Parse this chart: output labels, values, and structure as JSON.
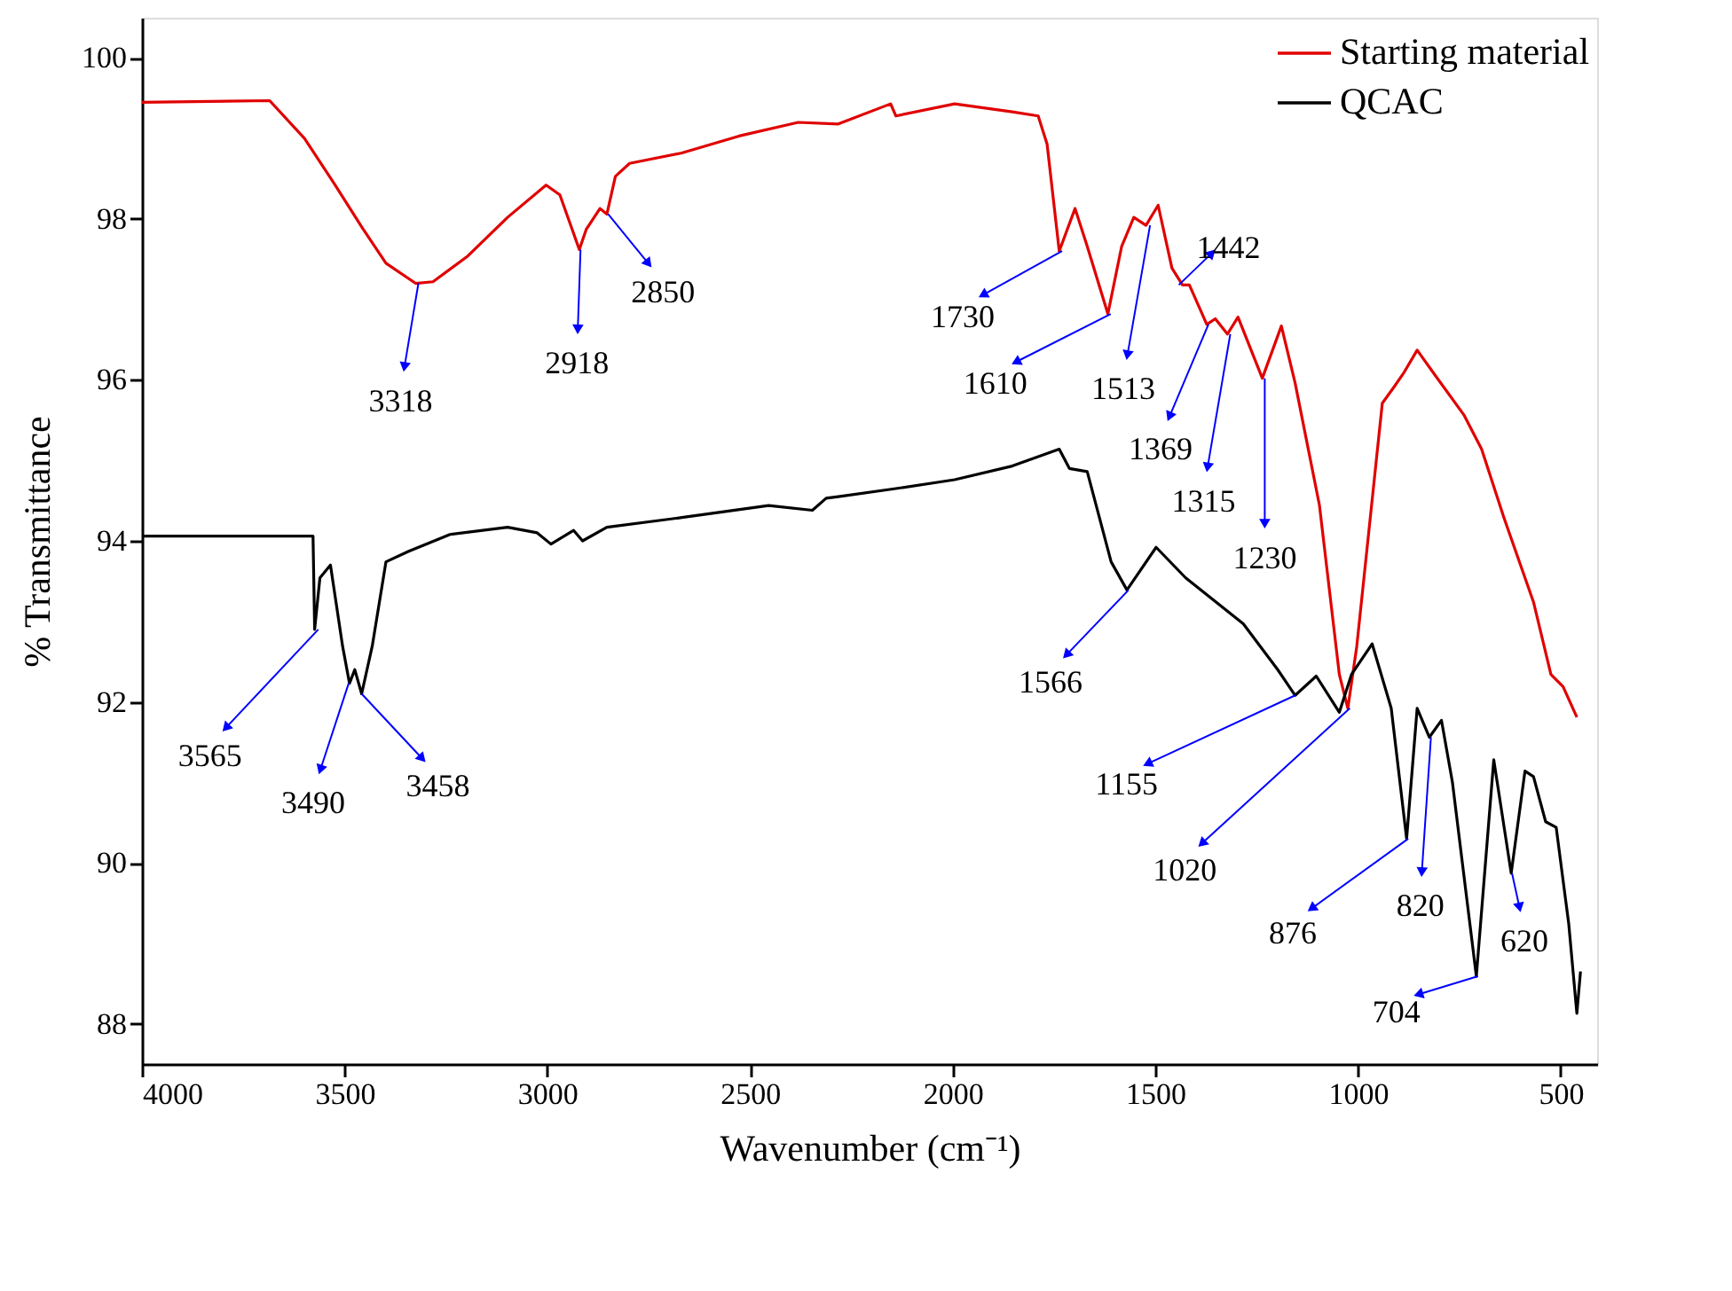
{
  "chart_data": {
    "type": "line",
    "xlabel": "Wavenumber (cm⁻¹)",
    "ylabel": "% Transmittance",
    "xlim": [
      4000,
      410
    ],
    "xticks": [
      4000,
      3500,
      3000,
      2500,
      2000,
      1500,
      1000,
      500
    ],
    "ylim": [
      87.5,
      100.5
    ],
    "yticks": [
      88,
      90,
      92,
      94,
      96,
      98,
      100
    ],
    "grid": false,
    "legend": "top right",
    "marker": "none",
    "line_style": "solid",
    "series": [
      {
        "name": "Starting material",
        "color": "#e00000",
        "x": [
          4000,
          3685,
          3599,
          3526,
          3454,
          3398,
          3325,
          3282,
          3196,
          3098,
          3003,
          2969,
          2921,
          2904,
          2870,
          2853,
          2832,
          2797,
          2668,
          2527,
          2381,
          2282,
          2153,
          2140,
          1995,
          1853,
          1789,
          1767,
          1737,
          1698,
          1668,
          1617,
          1583,
          1553,
          1523,
          1493,
          1459,
          1433,
          1416,
          1373,
          1352,
          1322,
          1296,
          1236,
          1189,
          1155,
          1095,
          1046,
          1025,
          1003,
          940,
          910,
          888,
          854,
          810,
          738,
          695,
          640,
          567,
          524,
          494,
          460
        ],
        "values": [
          99.45,
          99.47,
          99.0,
          98.44,
          97.87,
          97.45,
          97.2,
          97.22,
          97.54,
          98.02,
          98.42,
          98.3,
          97.62,
          97.87,
          98.13,
          98.06,
          98.53,
          98.69,
          98.82,
          99.03,
          99.2,
          99.18,
          99.43,
          99.28,
          99.43,
          99.33,
          99.28,
          98.93,
          97.6,
          98.13,
          97.66,
          96.82,
          97.66,
          98.02,
          97.92,
          98.17,
          97.39,
          97.18,
          97.18,
          96.69,
          96.76,
          96.57,
          96.78,
          96.02,
          96.67,
          95.96,
          94.44,
          92.34,
          91.92,
          92.69,
          95.71,
          95.92,
          96.08,
          96.37,
          96.06,
          95.56,
          95.14,
          94.29,
          93.24,
          92.34,
          92.19,
          91.81
        ]
      },
      {
        "name": "QCAC",
        "color": "#000000",
        "x": [
          4000,
          3578,
          3574,
          3561,
          3535,
          3505,
          3488,
          3475,
          3458,
          3432,
          3398,
          3342,
          3240,
          3098,
          3025,
          2991,
          2935,
          2913,
          2853,
          2668,
          2454,
          2346,
          2312,
          2282,
          2140,
          1995,
          1853,
          1737,
          1712,
          1668,
          1609,
          1570,
          1498,
          1425,
          1283,
          1198,
          1155,
          1103,
          1046,
          1016,
          965,
          918,
          880,
          854,
          824,
          794,
          767,
          708,
          665,
          622,
          588,
          567,
          537,
          511,
          480,
          460,
          451
        ],
        "values": [
          94.06,
          94.06,
          92.9,
          93.54,
          93.7,
          92.69,
          92.23,
          92.4,
          92.1,
          92.69,
          93.74,
          93.87,
          94.08,
          94.17,
          94.1,
          93.96,
          94.13,
          94.0,
          94.17,
          94.29,
          94.44,
          94.38,
          94.53,
          94.55,
          94.65,
          94.76,
          94.93,
          95.14,
          94.9,
          94.86,
          93.74,
          93.39,
          93.92,
          93.54,
          92.97,
          92.4,
          92.08,
          92.32,
          91.87,
          92.34,
          92.72,
          91.92,
          90.3,
          91.92,
          91.56,
          91.77,
          91.0,
          88.59,
          91.28,
          89.87,
          91.14,
          91.07,
          90.51,
          90.44,
          89.24,
          88.13,
          88.65
        ]
      }
    ],
    "annotations": [
      {
        "text": "3318",
        "x": 3318,
        "y": 97.2
      },
      {
        "text": "2918",
        "x": 2918,
        "y": 97.62
      },
      {
        "text": "2850",
        "x": 2850,
        "y": 98.06
      },
      {
        "text": "1730",
        "x": 1730,
        "y": 97.6
      },
      {
        "text": "1610",
        "x": 1610,
        "y": 96.82
      },
      {
        "text": "1513",
        "x": 1513,
        "y": 97.92
      },
      {
        "text": "1442",
        "x": 1442,
        "y": 97.18
      },
      {
        "text": "1369",
        "x": 1369,
        "y": 96.69
      },
      {
        "text": "1315",
        "x": 1315,
        "y": 96.57
      },
      {
        "text": "1230",
        "x": 1230,
        "y": 96.02
      },
      {
        "text": "1566",
        "x": 1566,
        "y": 93.39
      },
      {
        "text": "3565",
        "x": 3565,
        "y": 92.9
      },
      {
        "text": "3490",
        "x": 3490,
        "y": 92.23
      },
      {
        "text": "3458",
        "x": 3458,
        "y": 92.1
      },
      {
        "text": "1155",
        "x": 1155,
        "y": 92.08
      },
      {
        "text": "1020",
        "x": 1020,
        "y": 91.92
      },
      {
        "text": "876",
        "x": 876,
        "y": 90.3
      },
      {
        "text": "820",
        "x": 820,
        "y": 91.56
      },
      {
        "text": "704",
        "x": 704,
        "y": 88.59
      },
      {
        "text": "620",
        "x": 620,
        "y": 89.87
      }
    ]
  }
}
